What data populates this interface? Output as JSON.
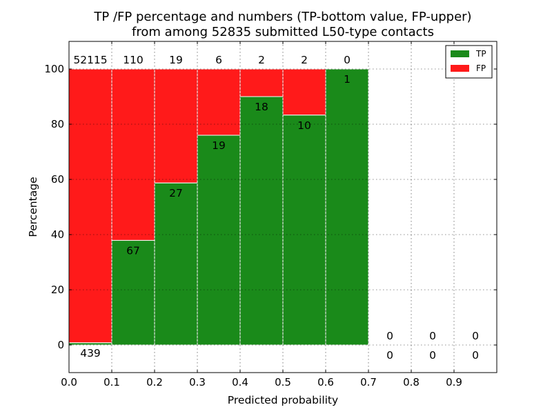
{
  "chart_data": {
    "type": "bar",
    "stacked": true,
    "title": "TP /FP percentage and numbers (TP-bottom value, FP-upper)",
    "subtitle": "from among 52835 submitted L50-type contacts",
    "xlabel": "Predicted probability",
    "ylabel": "Percentage",
    "xlim": [
      0.0,
      1.0
    ],
    "ylim": [
      -10,
      110
    ],
    "xticks": [
      "0.0",
      "0.1",
      "0.2",
      "0.3",
      "0.4",
      "0.5",
      "0.6",
      "0.7",
      "0.8",
      "0.9"
    ],
    "yticks": [
      "0",
      "20",
      "40",
      "60",
      "80",
      "100"
    ],
    "grid": true,
    "legend_position": "top-right",
    "bins": [
      {
        "x0": 0.0,
        "x1": 0.1,
        "tp_count": "439",
        "fp_count": "52115"
      },
      {
        "x0": 0.1,
        "x1": 0.2,
        "tp_count": "67",
        "fp_count": "110"
      },
      {
        "x0": 0.2,
        "x1": 0.3,
        "tp_count": "27",
        "fp_count": "19"
      },
      {
        "x0": 0.3,
        "x1": 0.4,
        "tp_count": "19",
        "fp_count": "6"
      },
      {
        "x0": 0.4,
        "x1": 0.5,
        "tp_count": "18",
        "fp_count": "2"
      },
      {
        "x0": 0.5,
        "x1": 0.6,
        "tp_count": "10",
        "fp_count": "2"
      },
      {
        "x0": 0.6,
        "x1": 0.7,
        "tp_count": "1",
        "fp_count": "0"
      },
      {
        "x0": 0.7,
        "x1": 0.8,
        "tp_count": "0",
        "fp_count": "0"
      },
      {
        "x0": 0.8,
        "x1": 0.9,
        "tp_count": "0",
        "fp_count": "0"
      },
      {
        "x0": 0.9,
        "x1": 1.0,
        "tp_count": "0",
        "fp_count": "0"
      }
    ],
    "series": [
      {
        "name": "TP",
        "color": "#1a8a1a",
        "values": [
          0.8,
          37.9,
          58.7,
          76.0,
          90.0,
          83.3,
          100.0,
          0,
          0,
          0
        ]
      },
      {
        "name": "FP",
        "color": "#ff1a1a",
        "values": [
          99.2,
          62.1,
          41.3,
          24.0,
          10.0,
          16.7,
          0.0,
          0,
          0,
          0
        ]
      }
    ]
  }
}
